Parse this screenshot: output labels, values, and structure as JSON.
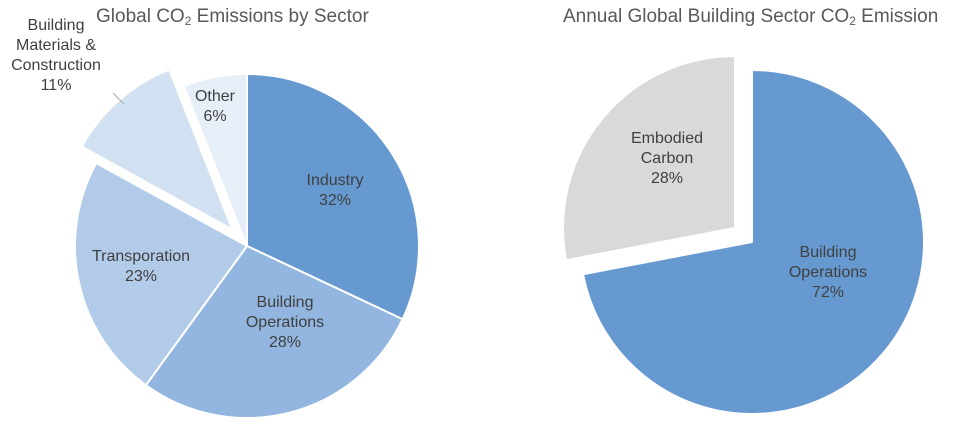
{
  "chart_data": [
    {
      "type": "pie",
      "title_main": "Global  CO",
      "title_sub": "2",
      "title_rest": "  Emissions by Sector",
      "slices": [
        {
          "label_lines": [
            "Industry",
            "32%"
          ],
          "value": 32,
          "color": "#6699cf",
          "exploded": false
        },
        {
          "label_lines": [
            "Building",
            "Operations",
            "28%"
          ],
          "value": 28,
          "color": "#92b6df",
          "exploded": false
        },
        {
          "label_lines": [
            "Transporation",
            "23%"
          ],
          "value": 23,
          "color": "#b1cbe8",
          "exploded": false
        },
        {
          "label_lines": [
            "Building",
            "Materials &",
            "Construction",
            "11%"
          ],
          "value": 11,
          "color": "#d2e1f1",
          "exploded": true
        },
        {
          "label_lines": [
            "Other",
            "6%"
          ],
          "value": 6,
          "color": "#e6eef8",
          "exploded": false
        }
      ]
    },
    {
      "type": "pie",
      "title_main": "Annual Global Building Sector CO",
      "title_sub": "2",
      "title_rest": " Emission",
      "slices": [
        {
          "label_lines": [
            "Building",
            "Operations",
            "72%"
          ],
          "value": 72,
          "color": "#6699cf",
          "exploded": false
        },
        {
          "label_lines": [
            "Embodied",
            "Carbon",
            "28%"
          ],
          "value": 28,
          "color": "#d9d9d9",
          "exploded": true
        }
      ]
    }
  ]
}
